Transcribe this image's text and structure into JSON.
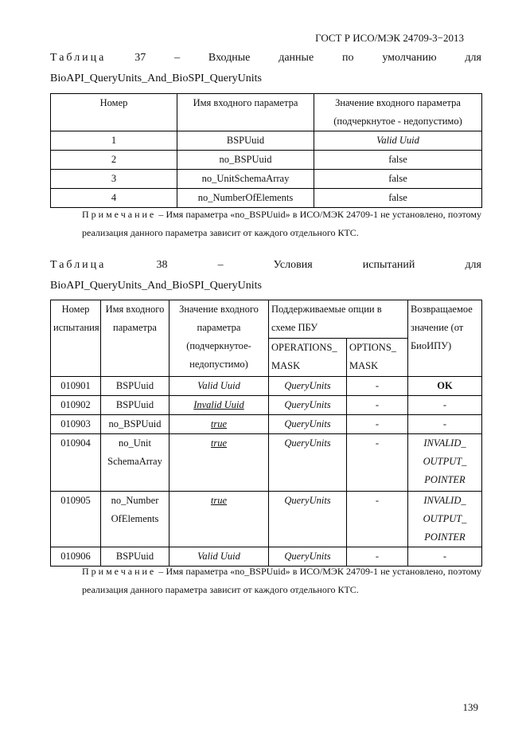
{
  "header": "ГОСТ Р ИСО/МЭК 24709-3−2013",
  "table37": {
    "caption_words": [
      "Таблица",
      "37",
      "–",
      "Входные",
      "данные",
      "по",
      "умолчанию",
      "для"
    ],
    "caption_line2": "BioAPI_QueryUnits_And_BioSPI_QueryUnits",
    "headers": [
      "Номер",
      "Имя входного параметра",
      "Значение входного параметра (подчеркнутое - недопустимо)"
    ],
    "rows": [
      [
        "1",
        "BSPUuid",
        "Valid Uuid"
      ],
      [
        "2",
        "no_BSPUuid",
        "false"
      ],
      [
        "3",
        "no_UnitSchemaArray",
        "false"
      ],
      [
        "4",
        "no_NumberOfElements",
        "false"
      ]
    ]
  },
  "note1": {
    "label": "Примечание",
    "text": " – Имя параметра «no_BSPUuid» в ИСО/МЭК 24709-1 не установлено, поэтому реализация данного параметра зависит от каждого отдельного КТС."
  },
  "table38": {
    "caption_words": [
      "Таблица",
      "38",
      "–",
      "Условия",
      "испытаний",
      "для"
    ],
    "caption_line2": "BioAPI_QueryUnits_And_BioSPI_QueryUnits",
    "headers": {
      "test_no": "Номер испытания",
      "param": "Имя входного параметра",
      "value": "Значение входного параметра (подчеркнутое-недопустимо)",
      "options": "Поддерживаемые опции в схеме ПБУ",
      "ops_mask": "OPERATIONS_ MASK",
      "opt_mask": "OPTIONS_ MASK",
      "ret": "Возвращаемое значение (от БиоИПУ)"
    },
    "rows": [
      [
        "010901",
        "BSPUuid",
        "Valid Uuid",
        "QueryUnits",
        "-",
        "OK"
      ],
      [
        "010902",
        "BSPUuid",
        "Invalid Uuid",
        "QueryUnits",
        "-",
        "-"
      ],
      [
        "010903",
        "no_BSPUuid",
        "true",
        "QueryUnits",
        "-",
        "-"
      ],
      [
        "010904",
        "no_Unit SchemaArray",
        "true",
        "QueryUnits",
        "-",
        "INVALID_ OUTPUT_ POINTER"
      ],
      [
        "010905",
        "no_Number OfElements",
        "true",
        "QueryUnits",
        "-",
        "INVALID_ OUTPUT_ POINTER"
      ],
      [
        "010906",
        "BSPUuid",
        "Valid Uuid",
        "QueryUnits",
        "-",
        "-"
      ]
    ]
  },
  "note2": {
    "label": "Примечание",
    "text": " – Имя параметра «no_BSPUuid» в ИСО/МЭК 24709-1 не установлено, поэтому реализация данного параметра зависит от каждого отдельного КТС."
  },
  "page_number": "139"
}
